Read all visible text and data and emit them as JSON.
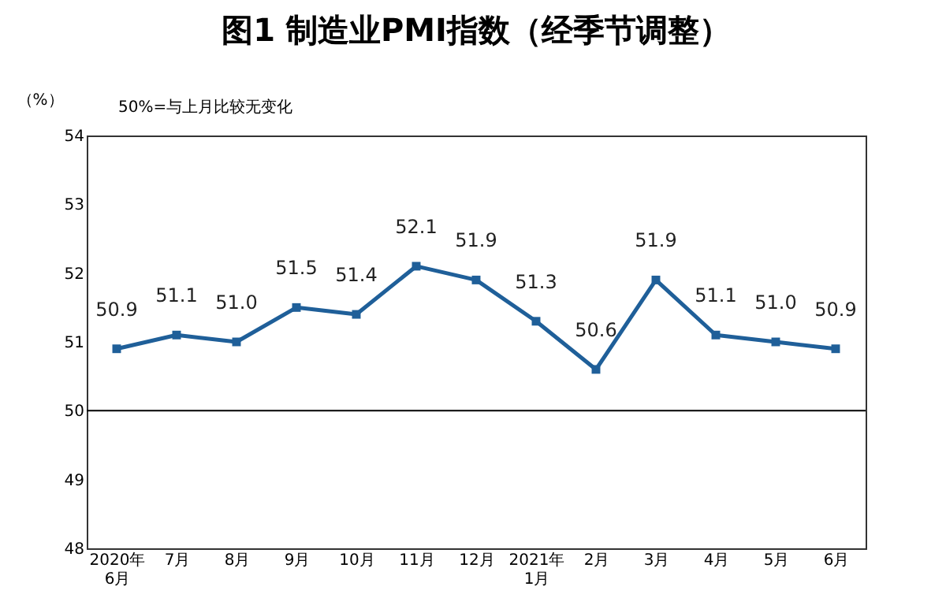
{
  "chart_data": {
    "type": "line",
    "title": "图1 制造业PMI指数（经季节调整）",
    "ylabel": "（%）",
    "annotations": [
      "50%=与上月比较无变化"
    ],
    "categories": [
      "2020年\n6月",
      "7月",
      "8月",
      "9月",
      "10月",
      "11月",
      "12月",
      "2021年\n1月",
      "2月",
      "3月",
      "4月",
      "5月",
      "6月"
    ],
    "series": [
      {
        "color": "#1f5f99",
        "values": [
          50.9,
          51.1,
          51.0,
          51.5,
          51.4,
          52.1,
          51.9,
          51.3,
          50.6,
          51.9,
          51.1,
          51.0,
          50.9
        ],
        "value_labels": [
          "50.9",
          "51.1",
          "51.0",
          "51.5",
          "51.4",
          "52.1",
          "51.9",
          "51.3",
          "50.6",
          "51.9",
          "51.1",
          "51.0",
          "50.9"
        ]
      }
    ],
    "ylim": [
      48,
      54
    ],
    "yticks": [
      48,
      49,
      50,
      51,
      52,
      53,
      54
    ],
    "ref_lines": [
      {
        "axis": "y",
        "value": 50,
        "color": "#000000"
      }
    ],
    "marker": "square",
    "line_style": "solid",
    "grid": false
  }
}
